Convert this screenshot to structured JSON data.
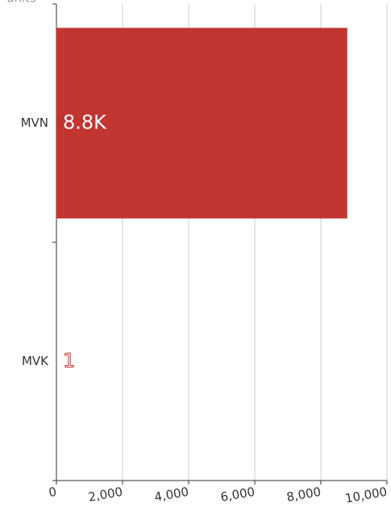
{
  "chart_data": {
    "type": "bar",
    "orientation": "horizontal",
    "x_label": "units",
    "categories": [
      "MVN",
      "MVK"
    ],
    "values": [
      8800,
      1
    ],
    "value_labels": [
      "8.8K",
      "1"
    ],
    "color": "#c23531",
    "xlim": [
      0,
      10000
    ],
    "xticks": [
      0,
      {
        "value": 2000,
        "label": "2,000"
      },
      {
        "value": 4000,
        "label": "4,000"
      },
      {
        "value": 6000,
        "label": "6,000"
      },
      {
        "value": 8000,
        "label": "8,000"
      },
      {
        "value": 10000,
        "label": "10,000"
      }
    ],
    "grid": true
  }
}
